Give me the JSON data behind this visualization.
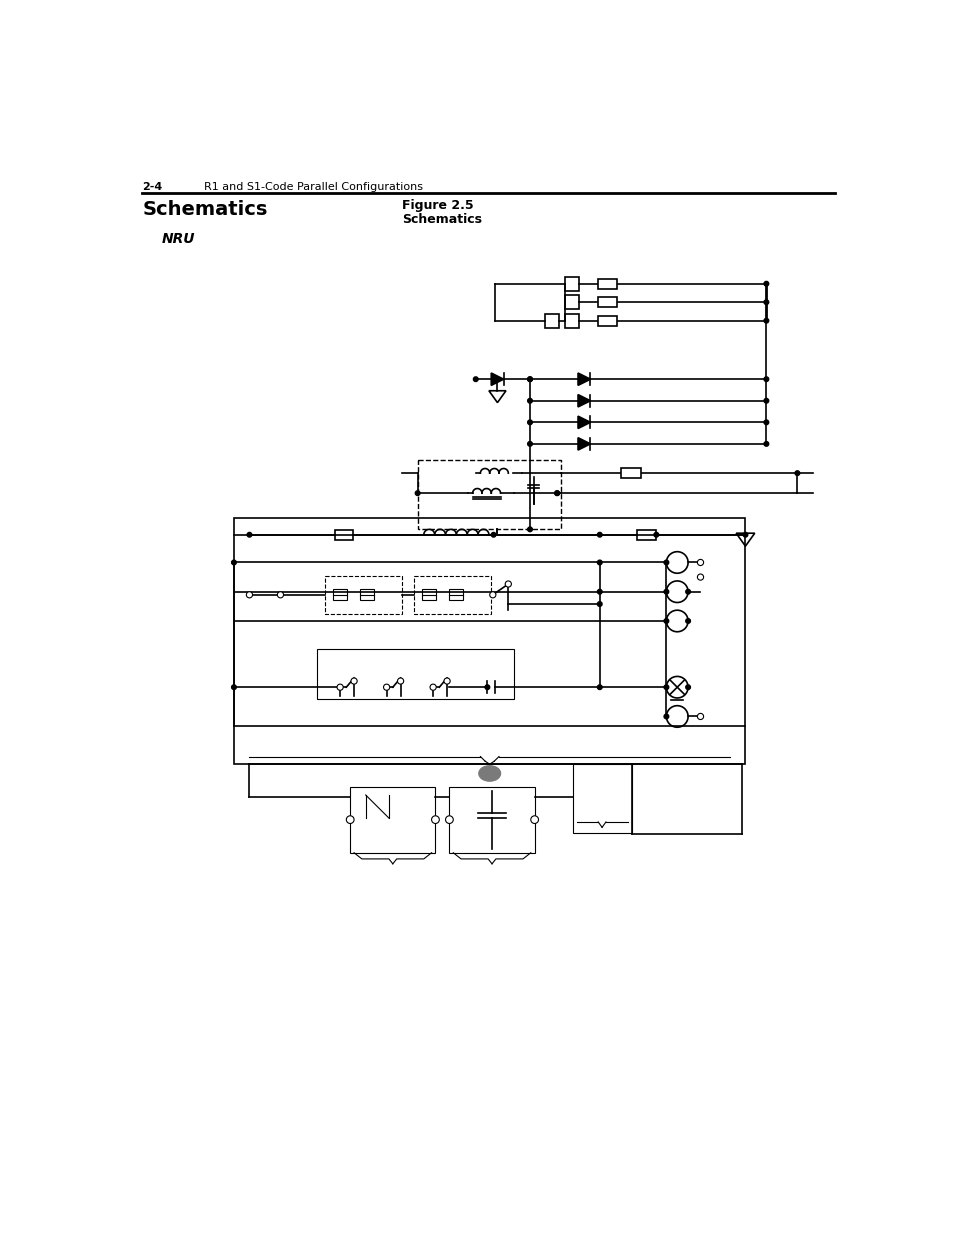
{
  "page_num": "2-4",
  "header_text": "R1 and S1-Code Parallel Configurations",
  "section_title": "Schematics",
  "figure_label": "Figure 2.5",
  "figure_title": "Schematics",
  "subsection": "NRU",
  "bg_color": "#ffffff",
  "line_color": "#000000",
  "gray_fill": "#7a7a7a"
}
